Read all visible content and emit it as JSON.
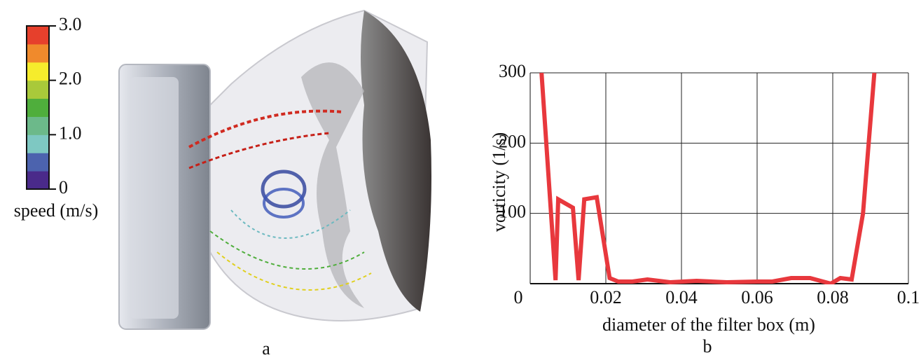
{
  "chart_data": [
    {
      "type": "colorbar",
      "label": "speed (m/s)",
      "caption": "a",
      "ylim": [
        0,
        3
      ],
      "yticks": [
        0,
        {
          "value": 1,
          "label": "1.0"
        },
        {
          "value": 2,
          "label": "2.0"
        },
        {
          "value": 3,
          "label": "3.0"
        }
      ],
      "colors": [
        "#4a2a8a",
        "#4c63ae",
        "#7ec8c2",
        "#6cb98a",
        "#4fae3c",
        "#a9c93a",
        "#f6ec2c",
        "#f08a2c",
        "#e6402c"
      ]
    },
    {
      "type": "line",
      "caption": "b",
      "xlabel": "diameter of the filter box (m)",
      "ylabel": "vorticity (1/s)",
      "x": [
        0.003,
        0.0067,
        0.0074,
        0.0113,
        0.0128,
        0.0143,
        0.0176,
        0.021,
        0.0233,
        0.027,
        0.031,
        0.037,
        0.044,
        0.052,
        0.06,
        0.064,
        0.069,
        0.074,
        0.0795,
        0.082,
        0.085,
        0.088,
        0.091
      ],
      "values": [
        300,
        5,
        120,
        108,
        5,
        120,
        123,
        8,
        3,
        3,
        6,
        2,
        4,
        2,
        3,
        3,
        8,
        8,
        0,
        8,
        6,
        100,
        300
      ],
      "color": "#e8383d",
      "xlim": [
        0,
        0.1
      ],
      "xticks": [
        0,
        0.02,
        0.04,
        0.06,
        0.08,
        0.1
      ],
      "ylim": [
        0,
        300
      ],
      "yticks": [
        100,
        200,
        300
      ],
      "grid": true
    }
  ]
}
